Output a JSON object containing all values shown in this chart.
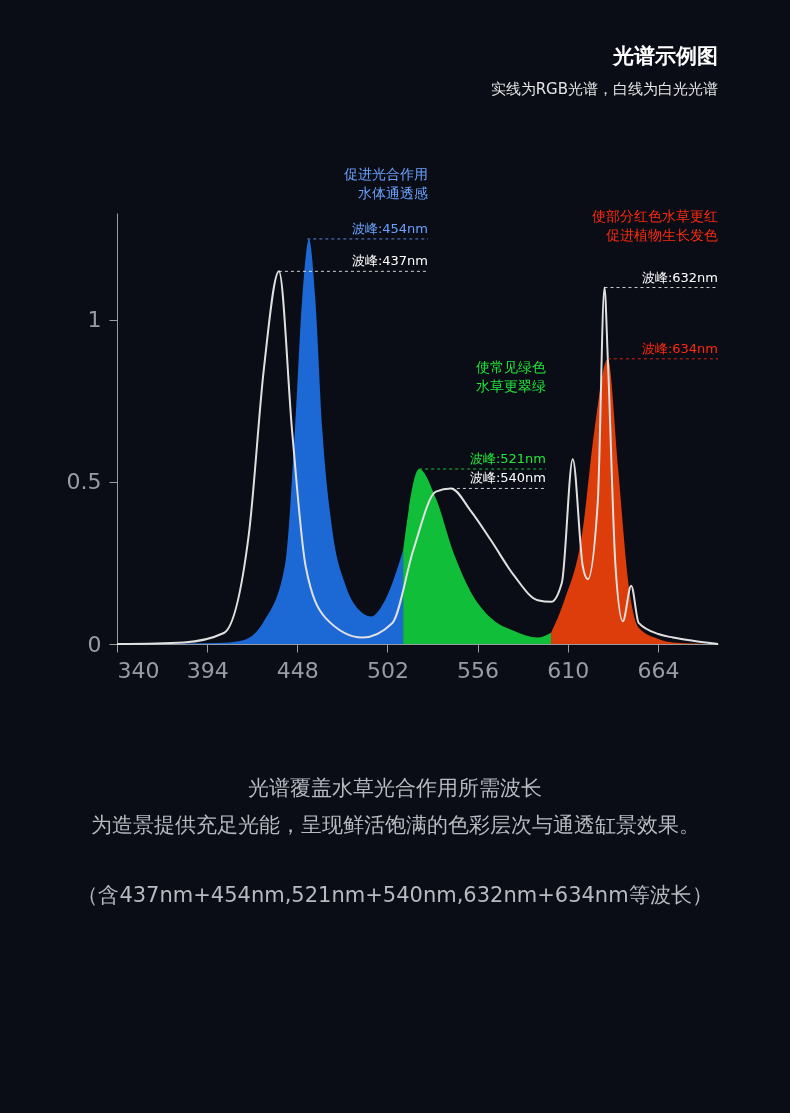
{
  "chart_data": {
    "type": "area",
    "title": "光谱示例图",
    "subtitle": "实线为RGB光谱，白线为白光光谱",
    "xlim": [
      340,
      700
    ],
    "xticks": [
      340,
      394,
      448,
      502,
      556,
      610,
      664
    ],
    "ylim": [
      0,
      1.33
    ],
    "yticks": [
      {
        "value": 0,
        "label": "0"
      },
      0.5,
      {
        "value": 1,
        "label": "1"
      }
    ],
    "grid": false,
    "series": [
      {
        "color": "#1e6fe0",
        "x": [
          340,
          400,
          414.5,
          428,
          440.5,
          446.6,
          451,
          455,
          458.7,
          463,
          469,
          477,
          485,
          492,
          501,
          511.4
        ],
        "values": [
          0,
          0.003,
          0.01,
          0.07,
          0.24,
          0.66,
          1.07,
          1.25,
          1.07,
          0.66,
          0.35,
          0.18,
          0.105,
          0.085,
          0.14,
          0.29
        ]
      },
      {
        "color": "#12c83c",
        "x": [
          511.4,
          521,
          531,
          541.7,
          552,
          564,
          578,
          592,
          600
        ],
        "values": [
          0.29,
          0.54,
          0.45,
          0.28,
          0.16,
          0.08,
          0.04,
          0.02,
          0.035
        ]
      },
      {
        "color": "#e8400a",
        "x": [
          600,
          608,
          618.6,
          626,
          634,
          640,
          646.5,
          652.5,
          664.7,
          673,
          700
        ],
        "values": [
          0.035,
          0.135,
          0.34,
          0.66,
          0.88,
          0.55,
          0.18,
          0.05,
          0.015,
          0.005,
          0
        ]
      },
      {
        "type": "line",
        "color": "#e0e0e0",
        "x": [
          340,
          380,
          404,
          419,
          428,
          437,
          445,
          453,
          465,
          487,
          505,
          517.5,
          531,
          540,
          552,
          564,
          578,
          592,
          600,
          606.5,
          613,
          619,
          622,
          628,
          632,
          634,
          638.6,
          643,
          648,
          652.5,
          664.7,
          673,
          685,
          700
        ],
        "values": [
          0,
          0.005,
          0.034,
          0.34,
          0.85,
          1.15,
          0.65,
          0.24,
          0.08,
          0.02,
          0.065,
          0.29,
          0.47,
          0.48,
          0.41,
          0.32,
          0.21,
          0.135,
          0.13,
          0.19,
          0.57,
          0.24,
          0.2,
          0.44,
          1.1,
          0.88,
          0.24,
          0.07,
          0.18,
          0.065,
          0.03,
          0.02,
          0.01,
          0
        ]
      }
    ],
    "annotations": [
      "促进光合作用",
      "水体通透感",
      {
        "text": "波峰:454nm",
        "x": 454,
        "y": 1.25
      },
      {
        "text": "波峰:437nm",
        "x": 437,
        "y": 1.15
      },
      "使常见绿色",
      "水草更翠绿",
      {
        "text": "波峰:521nm",
        "x": 521,
        "y": 0.54
      },
      {
        "text": "波峰:540nm",
        "x": 540,
        "y": 0.48
      },
      "使部分红色水草更红",
      "促进植物生长发色",
      {
        "text": "波峰:632nm",
        "x": 632,
        "y": 1.1
      },
      {
        "text": "波峰:634nm",
        "x": 634,
        "y": 0.88
      },
      "光谱覆盖水草光合作用所需波长",
      "为造景提供充足光能，呈现鲜活饱满的色彩层次与通透缸景效果。",
      "（含437nm+454nm,521nm+540nm,632nm+634nm等波长）"
    ]
  }
}
